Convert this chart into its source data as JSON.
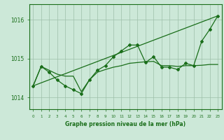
{
  "bg_color": "#cce8d8",
  "grid_color": "#9dbfaa",
  "line_color": "#1a6e1a",
  "marker_color": "#1a6e1a",
  "xlabel": "Graphe pression niveau de la mer (hPa)",
  "xlabel_color": "#1a6e1a",
  "ylim": [
    1013.7,
    1016.4
  ],
  "yticks": [
    1014,
    1015,
    1016
  ],
  "xlim": [
    -0.5,
    23.5
  ],
  "xticks": [
    0,
    1,
    2,
    3,
    4,
    5,
    6,
    7,
    8,
    9,
    10,
    11,
    12,
    13,
    14,
    15,
    16,
    17,
    18,
    19,
    20,
    21,
    22,
    23
  ],
  "series1": [
    1014.3,
    1014.8,
    1014.7,
    1014.6,
    1014.55,
    1014.55,
    1014.15,
    1014.45,
    1014.65,
    1014.72,
    1014.78,
    1014.82,
    1014.88,
    1014.9,
    1014.92,
    1014.93,
    1014.82,
    1014.82,
    1014.8,
    1014.82,
    1014.82,
    1014.83,
    1014.85,
    1014.85
  ],
  "series2": [
    1014.3,
    1014.8,
    1014.65,
    1014.45,
    1014.3,
    1014.2,
    1014.1,
    1014.45,
    1014.7,
    1014.82,
    1015.05,
    1015.2,
    1015.35,
    1015.35,
    1014.9,
    1015.05,
    1014.78,
    1014.78,
    1014.72,
    1014.88,
    1014.82,
    1015.45,
    1015.75,
    1016.1
  ],
  "series3_x": [
    0,
    23
  ],
  "series3_y": [
    1014.3,
    1016.1
  ]
}
